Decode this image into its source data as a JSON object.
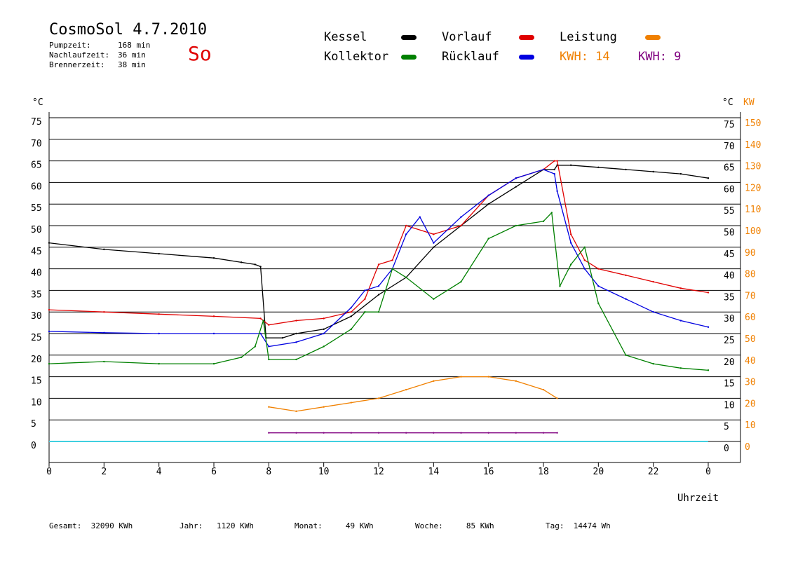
{
  "header": {
    "title": "CosmoSol 4.7.2010",
    "day": "So",
    "stats": [
      {
        "label": "Pumpzeit:",
        "value": "168 min"
      },
      {
        "label": "Nachlaufzeit:",
        "value": "36 min"
      },
      {
        "label": "Brennerzeit:",
        "value": "38 min"
      }
    ]
  },
  "legend": {
    "kessel": "Kessel",
    "kollektor": "Kollektor",
    "vorlauf": "Vorlauf",
    "ruecklauf": "Rücklauf",
    "leistung": "Leistung",
    "kwh1": "KWH: 14",
    "kwh2": "KWH: 9"
  },
  "colors": {
    "kessel": "#000000",
    "kollektor": "#008000",
    "vorlauf": "#e00000",
    "ruecklauf": "#0000e0",
    "leistung": "#f08000",
    "kwh2": "#800080",
    "pump": "#40d0e0",
    "grid": "#000000"
  },
  "footer": {
    "gesamt": "Gesamt:  32090 KWh",
    "jahr": "Jahr:   1120 KWh",
    "monat": "Monat:     49 KWh",
    "woche": "Woche:     85 KWh",
    "tag": "Tag:  14474 Wh"
  },
  "chart_data": {
    "type": "line",
    "xlabel": "Uhrzeit",
    "ylabel_left": "°C",
    "ylabel_right_1": "°C",
    "ylabel_right_2": "KW",
    "xlim": [
      0,
      24
    ],
    "ylim": [
      0,
      75
    ],
    "x_ticks": [
      "0",
      "2",
      "4",
      "6",
      "8",
      "10",
      "12",
      "14",
      "16",
      "18",
      "20",
      "22",
      "0"
    ],
    "y_ticks_left": [
      "0",
      "5",
      "10",
      "15",
      "20",
      "25",
      "30",
      "35",
      "40",
      "45",
      "50",
      "55",
      "60",
      "65",
      "70",
      "75"
    ],
    "y_ticks_right_c": [
      "0",
      "5",
      "10",
      "15",
      "20",
      "25",
      "30",
      "35",
      "40",
      "45",
      "50",
      "55",
      "60",
      "65",
      "70",
      "75"
    ],
    "y_ticks_right_kw": [
      "0",
      "10",
      "20",
      "30",
      "40",
      "50",
      "60",
      "70",
      "80",
      "90",
      "100",
      "110",
      "120",
      "130",
      "140",
      "150"
    ],
    "grid": true,
    "series": [
      {
        "name": "Kessel",
        "x": [
          0,
          2,
          4,
          6,
          7,
          7.5,
          7.7,
          7.9,
          8.5,
          9,
          10,
          11,
          12,
          13,
          14,
          15,
          16,
          17,
          18,
          18.4,
          18.5,
          19,
          20,
          21,
          22,
          23,
          24
        ],
        "y": [
          46,
          44.5,
          43.5,
          42.5,
          41.5,
          41,
          40.5,
          24,
          24,
          25,
          26,
          29,
          34,
          38,
          45,
          50,
          55,
          59,
          63,
          63,
          64,
          64,
          63.5,
          63,
          62.5,
          62,
          61
        ]
      },
      {
        "name": "Vorlauf",
        "x": [
          0,
          2,
          4,
          6,
          7.7,
          8,
          9,
          10,
          11,
          11.5,
          12,
          12.5,
          13,
          14,
          15,
          16,
          17,
          18,
          18.4,
          18.5,
          19,
          19.5,
          20,
          21,
          22,
          23,
          24
        ],
        "y": [
          30.5,
          30,
          29.5,
          29,
          28.5,
          27,
          28,
          28.5,
          30,
          33,
          41,
          42,
          50,
          48,
          50,
          57,
          61,
          63,
          65,
          65,
          48,
          42,
          40,
          38.5,
          37,
          35.5,
          34.5
        ]
      },
      {
        "name": "Rücklauf",
        "x": [
          0,
          2,
          4,
          6,
          7.7,
          8,
          9,
          10,
          11,
          11.5,
          12,
          12.5,
          13,
          13.5,
          14,
          15,
          16,
          17,
          18,
          18.4,
          18.5,
          19,
          19.5,
          20,
          21,
          22,
          23,
          24
        ],
        "y": [
          25.5,
          25.2,
          25,
          25,
          25,
          22,
          23,
          25,
          31,
          35,
          36,
          40,
          48,
          52,
          46,
          52,
          57,
          61,
          63,
          62,
          58,
          46,
          40,
          36,
          33,
          30,
          28,
          26.5
        ]
      },
      {
        "name": "Kollektor",
        "x": [
          0,
          2,
          4,
          6,
          7,
          7.5,
          7.8,
          8,
          9,
          10,
          11,
          11.5,
          12,
          12.5,
          13,
          14,
          15,
          16,
          17,
          18,
          18.3,
          18.6,
          19,
          19.5,
          20,
          21,
          22,
          23,
          24
        ],
        "y": [
          18,
          18.5,
          18,
          18,
          19.5,
          22,
          28,
          19,
          19,
          22,
          26,
          30,
          30,
          40,
          38,
          33,
          37,
          47,
          50,
          51,
          53,
          36,
          41,
          45,
          32,
          20,
          18,
          17,
          16.5
        ]
      },
      {
        "name": "Leistung",
        "x": [
          8,
          9,
          10,
          11,
          12,
          13,
          14,
          15,
          16,
          17,
          18,
          18.5
        ],
        "y": [
          8,
          7,
          8,
          9,
          10,
          12,
          14,
          15,
          15,
          14,
          12,
          10
        ]
      },
      {
        "name": "Leistung",
        "x": [
          8,
          9,
          10,
          11,
          12,
          13,
          14,
          15,
          16,
          17,
          18,
          18.5
        ],
        "y": [
          2,
          2,
          2,
          2,
          2,
          2,
          2,
          2,
          2,
          2,
          2,
          2
        ]
      }
    ]
  }
}
